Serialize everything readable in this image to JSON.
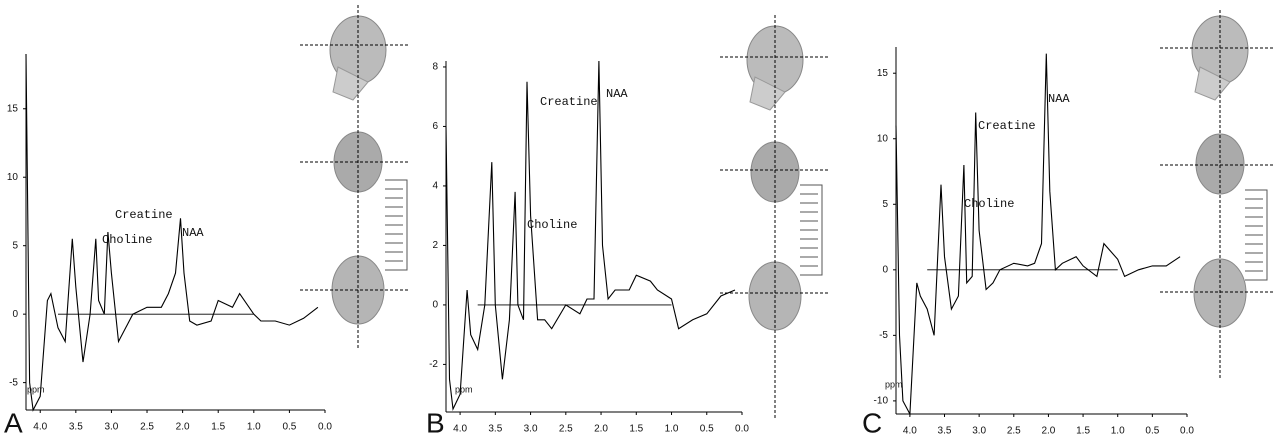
{
  "chart_data": [
    {
      "type": "line",
      "label": "A",
      "xlabel": "ppm",
      "annotations": [
        "Creatine",
        "Choline",
        "NAA"
      ],
      "x": [
        4.2,
        4.15,
        4.1,
        4.0,
        3.9,
        3.85,
        3.75,
        3.65,
        3.55,
        3.5,
        3.4,
        3.3,
        3.22,
        3.18,
        3.1,
        3.05,
        3.0,
        2.9,
        2.8,
        2.7,
        2.5,
        2.3,
        2.2,
        2.1,
        2.03,
        1.98,
        1.9,
        1.8,
        1.6,
        1.5,
        1.3,
        1.2,
        1.0,
        0.9,
        0.7,
        0.5,
        0.3,
        0.1
      ],
      "series": [
        {
          "color": "#000000",
          "values": [
            19,
            -5,
            -7,
            -6,
            1,
            1.5,
            -1,
            -2,
            5.5,
            2,
            -3.5,
            0,
            5.5,
            1,
            0,
            6,
            3,
            -2,
            -1,
            0,
            0.5,
            0.5,
            1.5,
            3,
            7,
            3,
            -0.5,
            -0.8,
            -0.5,
            1,
            0.5,
            1.5,
            0,
            -0.5,
            -0.5,
            -0.8,
            -0.3,
            0.5
          ]
        },
        {
          "color": "#000000",
          "values": [
            null,
            null,
            null,
            null,
            null,
            null,
            0,
            0,
            0,
            0,
            0,
            0,
            0,
            0,
            0,
            0,
            0,
            0,
            0,
            0,
            0,
            0,
            0,
            0,
            0,
            0,
            0,
            0,
            0,
            0,
            0,
            0,
            0,
            null,
            null,
            null,
            null,
            null
          ]
        }
      ],
      "xlim": [
        4.2,
        0
      ],
      "ylim": [
        -7,
        19
      ],
      "xticks": [
        {
          "value": 4.0,
          "label": "4.0"
        },
        3.5,
        {
          "value": 3.0,
          "label": "3.0"
        },
        2.5,
        {
          "value": 2.0,
          "label": "2.0"
        },
        1.5,
        {
          "value": 1.0,
          "label": "1.0"
        },
        0.5,
        {
          "value": 0.0,
          "label": "0.0"
        }
      ],
      "yticks": [
        -5,
        0,
        5,
        10,
        15
      ]
    },
    {
      "type": "line",
      "label": "B",
      "xlabel": "ppm",
      "annotations": [
        "Creatine",
        "Choline",
        "NAA"
      ],
      "x": [
        4.2,
        4.15,
        4.1,
        4.0,
        3.9,
        3.85,
        3.75,
        3.65,
        3.55,
        3.5,
        3.4,
        3.3,
        3.22,
        3.18,
        3.1,
        3.05,
        3.0,
        2.9,
        2.8,
        2.7,
        2.5,
        2.3,
        2.2,
        2.1,
        2.03,
        1.98,
        1.9,
        1.8,
        1.6,
        1.5,
        1.3,
        1.2,
        1.0,
        0.9,
        0.7,
        0.5,
        0.3,
        0.1
      ],
      "series": [
        {
          "color": "#000000",
          "values": [
            6,
            -2.5,
            -3.5,
            -3,
            0.5,
            -1,
            -1.5,
            0,
            4.8,
            0,
            -2.5,
            -0.5,
            3.8,
            0,
            -0.5,
            7.5,
            3,
            -0.5,
            -0.5,
            -0.8,
            0,
            -0.3,
            0.2,
            0.2,
            8.2,
            2,
            0.2,
            0.5,
            0.5,
            1,
            0.8,
            0.5,
            0.2,
            -0.8,
            -0.5,
            -0.3,
            0.3,
            0.5
          ]
        },
        {
          "color": "#000000",
          "values": [
            null,
            null,
            null,
            null,
            null,
            null,
            0,
            0,
            0,
            0,
            0,
            0,
            0,
            0,
            0,
            0,
            0,
            0,
            0,
            0,
            0,
            0,
            0,
            0,
            0,
            0,
            0,
            0,
            0,
            0,
            0,
            0,
            0,
            null,
            null,
            null,
            null,
            null
          ]
        }
      ],
      "xlim": [
        4.2,
        0
      ],
      "ylim": [
        -3.6,
        8.2
      ],
      "xticks": [
        {
          "value": 4.0,
          "label": "4.0"
        },
        3.5,
        {
          "value": 3.0,
          "label": "3.0"
        },
        2.5,
        {
          "value": 2.0,
          "label": "2.0"
        },
        1.5,
        {
          "value": 1.0,
          "label": "1.0"
        },
        0.5,
        {
          "value": 0.0,
          "label": "0.0"
        }
      ],
      "yticks": [
        -2,
        0,
        2,
        4,
        6,
        8
      ]
    },
    {
      "type": "line",
      "label": "C",
      "xlabel": "ppm",
      "annotations": [
        "Creatine",
        "Choline",
        "NAA"
      ],
      "x": [
        4.2,
        4.15,
        4.1,
        4.0,
        3.9,
        3.85,
        3.75,
        3.65,
        3.55,
        3.5,
        3.4,
        3.3,
        3.22,
        3.18,
        3.1,
        3.05,
        3.0,
        2.9,
        2.8,
        2.7,
        2.5,
        2.3,
        2.2,
        2.1,
        2.03,
        1.98,
        1.9,
        1.8,
        1.6,
        1.5,
        1.3,
        1.2,
        1.0,
        0.9,
        0.7,
        0.5,
        0.3,
        0.1
      ],
      "series": [
        {
          "color": "#000000",
          "values": [
            11,
            -5,
            -10,
            -11,
            -1,
            -2,
            -3,
            -5,
            6.5,
            1,
            -3,
            -2,
            8,
            -1,
            -0.5,
            12,
            3,
            -1.5,
            -1,
            0,
            0.5,
            0.3,
            0.5,
            2,
            16.5,
            6,
            0,
            0.5,
            1,
            0.3,
            -0.5,
            2,
            0.8,
            -0.5,
            0,
            0.3,
            0.3,
            1
          ]
        },
        {
          "color": "#000000",
          "values": [
            null,
            null,
            null,
            null,
            null,
            null,
            0,
            0,
            0,
            0,
            0,
            0,
            0,
            0,
            0,
            0,
            0,
            0,
            0,
            0,
            0,
            0,
            0,
            0,
            0,
            0,
            0,
            0,
            0,
            0,
            0,
            0,
            0,
            null,
            null,
            null,
            null,
            null
          ]
        }
      ],
      "xlim": [
        4.2,
        0
      ],
      "ylim": [
        -11,
        17
      ],
      "xticks": [
        {
          "value": 4.0,
          "label": "4.0"
        },
        3.5,
        {
          "value": 3.0,
          "label": "3.0"
        },
        2.5,
        {
          "value": 2.0,
          "label": "2.0"
        },
        1.5,
        {
          "value": 1.0,
          "label": "1.0"
        },
        0.5,
        {
          "value": 0.0,
          "label": "0.0"
        }
      ],
      "yticks": [
        -10,
        -5,
        0,
        5,
        10,
        15
      ]
    }
  ]
}
